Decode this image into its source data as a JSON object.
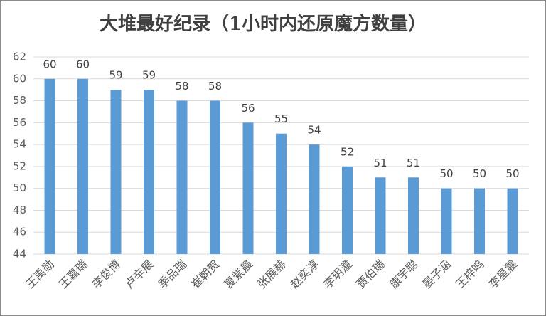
{
  "chart_data": {
    "type": "bar",
    "title": "大堆最好纪录（1小时内还原魔方数量）",
    "categories": [
      "王禹勋",
      "王嘉瑞",
      "李俊博",
      "卢辛展",
      "季品瑞",
      "崔朝贺",
      "夏紫晨",
      "张展赫",
      "赵奕淳",
      "李玥潼",
      "贾伯瑞",
      "康宇聪",
      "晏子涵",
      "王梓鸣",
      "李星震"
    ],
    "values": [
      60,
      60,
      59,
      59,
      58,
      58,
      56,
      55,
      54,
      52,
      51,
      51,
      50,
      50,
      50
    ],
    "color": "#5b9bd5",
    "ylim": [
      44,
      62
    ],
    "yticks": [
      44,
      46,
      48,
      50,
      52,
      54,
      56,
      58,
      60,
      62
    ],
    "grid": true
  }
}
